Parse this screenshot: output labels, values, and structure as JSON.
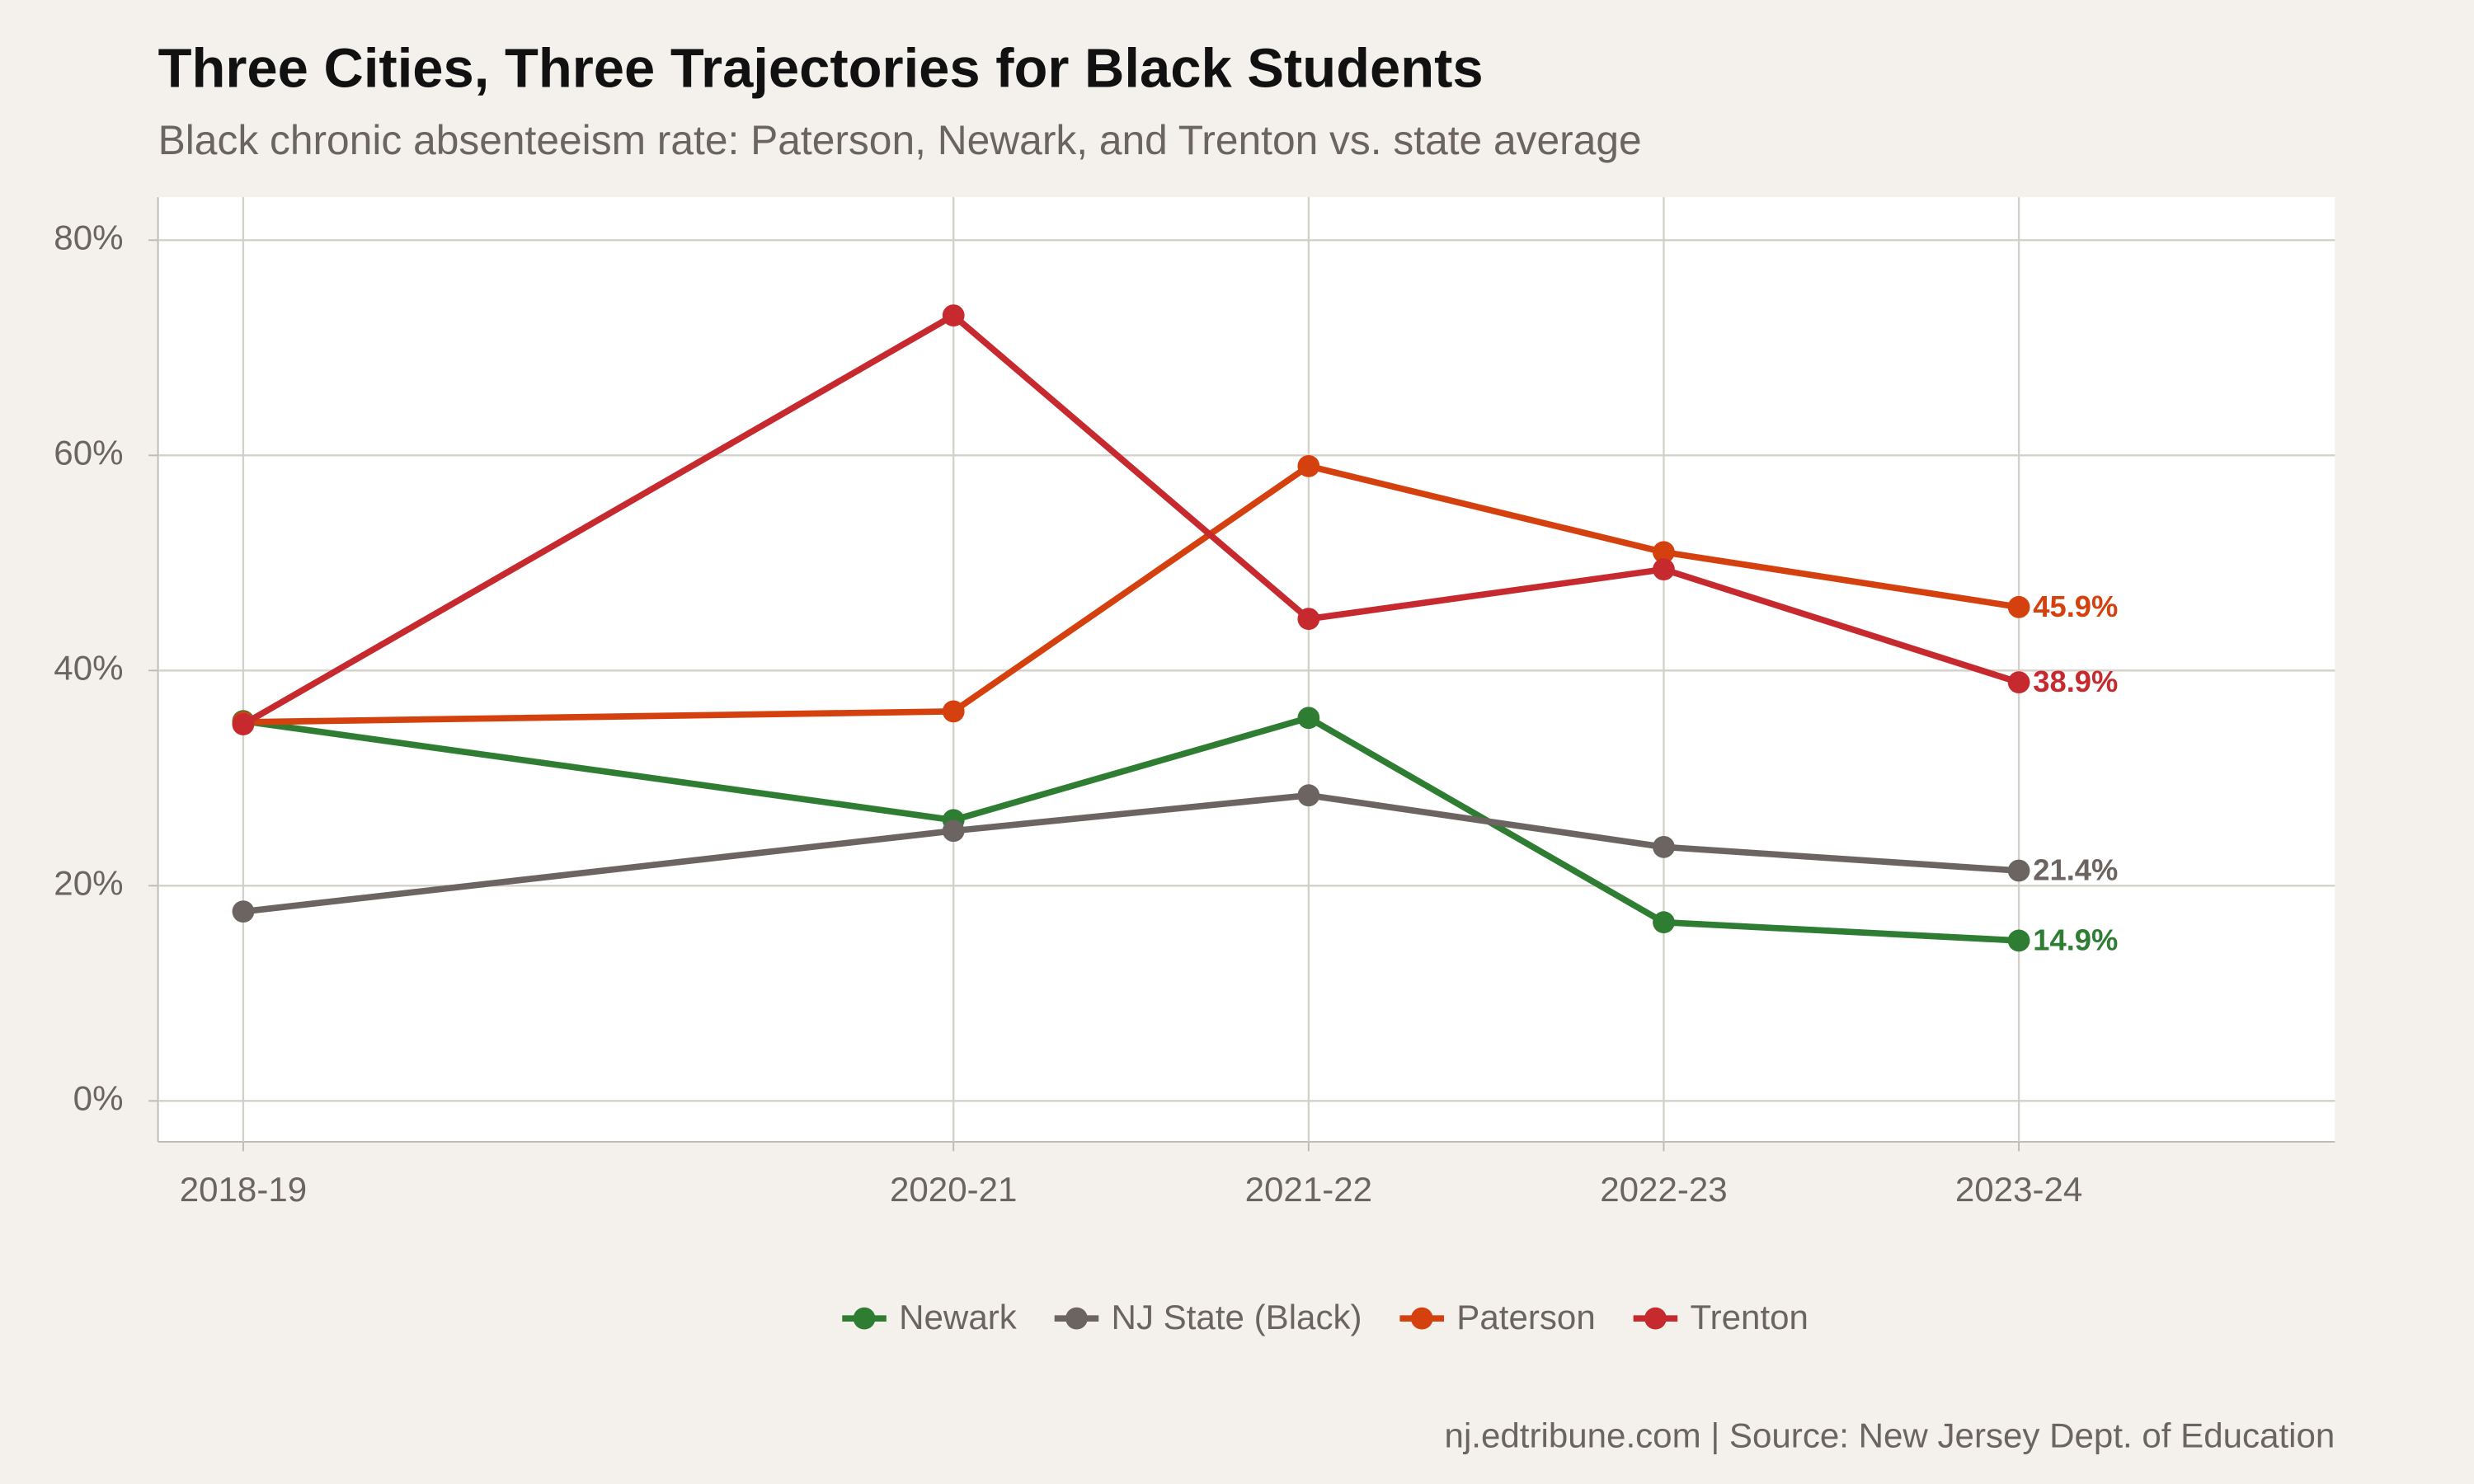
{
  "chart_data": {
    "type": "line",
    "title": "Three Cities, Three Trajectories for Black Students",
    "subtitle": "Black chronic absenteeism rate: Paterson, Newark, and Trenton vs. state average",
    "caption": "nj.edtribune.com | Source: New Jersey Dept. of Education",
    "x": [
      2018,
      2020,
      2021,
      2022,
      2023
    ],
    "xlim": [
      2017.76,
      2023.89
    ],
    "xticks": [
      {
        "value": 2018,
        "label": "2018-19"
      },
      {
        "value": 2020,
        "label": "2020-21"
      },
      {
        "value": 2021,
        "label": "2021-22"
      },
      {
        "value": 2022,
        "label": "2022-23"
      },
      {
        "value": 2023,
        "label": "2023-24"
      }
    ],
    "ylim": [
      -3.8,
      84
    ],
    "yticks": [
      {
        "value": 0,
        "label": "0%"
      },
      {
        "value": 20,
        "label": "20%"
      },
      {
        "value": 40,
        "label": "40%"
      },
      {
        "value": 60,
        "label": "60%"
      },
      {
        "value": 80,
        "label": "80%"
      }
    ],
    "grid": true,
    "legend": "bottom",
    "series": [
      {
        "name": "Newark",
        "color": "#2e7d32",
        "values": [
          35.3,
          26.1,
          35.6,
          16.6,
          14.9
        ],
        "value_labels": [
          null,
          null,
          null,
          null,
          "14.9%"
        ]
      },
      {
        "name": "NJ State (Black)",
        "color": "#6b6461",
        "values": [
          17.6,
          25.1,
          28.4,
          23.6,
          21.4
        ],
        "value_labels": [
          null,
          null,
          null,
          null,
          "21.4%"
        ]
      },
      {
        "name": "Paterson",
        "color": "#d4400e",
        "values": [
          35.2,
          36.2,
          59.0,
          51.0,
          45.9
        ],
        "value_labels": [
          null,
          null,
          null,
          null,
          "45.9%"
        ]
      },
      {
        "name": "Trenton",
        "color": "#c62a2f",
        "values": [
          35.0,
          73.0,
          44.8,
          49.4,
          38.9
        ],
        "value_labels": [
          null,
          null,
          null,
          null,
          "38.9%"
        ]
      }
    ]
  }
}
